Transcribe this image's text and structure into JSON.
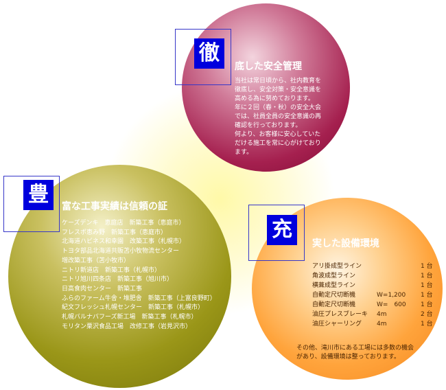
{
  "sections": {
    "safety": {
      "kanji": "徹",
      "heading": "底した安全管理",
      "lines": [
        "当社は常日頃から、社内教育を",
        "徹底し、安全対策・安全意識を",
        "高める為に努めております。",
        "年に２回（春・秋）の安全大会",
        "では、社員全員の安全意識の再",
        "確認を行っております。",
        "何より、お客様に安心していた",
        "だける施工を常に心がけており",
        "ます。"
      ]
    },
    "track_record": {
      "kanji": "豊",
      "heading": "富な工事実績は信頼の証",
      "lines": [
        "ケーズデンキ　恵庭店　新築工事（恵庭市）",
        "フレスポ恵み野　新築工事（恵庭市）",
        "北海道ハビネス和幸園　改築工事（札幌市）",
        "トヨタ部品北海道共販苫小牧物流センター",
        "増改築工事（苫小牧市）",
        "ニトリ新道店　新築工事（札幌市）",
        "ニトリ旭川四条店　新築工事（旭川市）",
        "日高食肉センター　新築工事",
        "ふらのファーム牛舎・堆肥舎　新築工事（上富良野町）",
        "紀文フレッシュ札幌センター　新築工事（札幌市）",
        "札幌バルナバフーズ新工場　新築工事（札幌市）",
        "モリタン栗沢食品工場　改修工事（岩見沢市）"
      ]
    },
    "equipment": {
      "kanji": "充",
      "heading": "実した設備環境",
      "items": [
        {
          "name": "アリ掛成型ライン",
          "spec": "",
          "qty": "1 台"
        },
        {
          "name": "角波成型ライン",
          "spec": "",
          "qty": "1 台"
        },
        {
          "name": "横葺成型ライン",
          "spec": "",
          "qty": "1 台"
        },
        {
          "name": "自動定尺切断機",
          "spec": "W=1,200",
          "qty": "1 台"
        },
        {
          "name": "自動定尺切断機",
          "spec": "W=　600",
          "qty": "1 台"
        },
        {
          "name": "油圧プレスブレーキ",
          "spec": "4m",
          "qty": "2 台"
        },
        {
          "name": "油圧シャーリング",
          "spec": "4m",
          "qty": "1 台"
        }
      ],
      "note_lines": [
        "その他、滝川市にある工場には多数の機会",
        "があり、設備環境は整っております。"
      ]
    }
  },
  "colors": {
    "kanji_box": "#0000dd",
    "frame_border": "#3535c8",
    "safety_circle": "#a5204f",
    "track_record_circle": "#9a9618",
    "equipment_circle": "#ffa43c",
    "center_glow": "#fff9a8",
    "equipment_text": "#4a2400"
  }
}
